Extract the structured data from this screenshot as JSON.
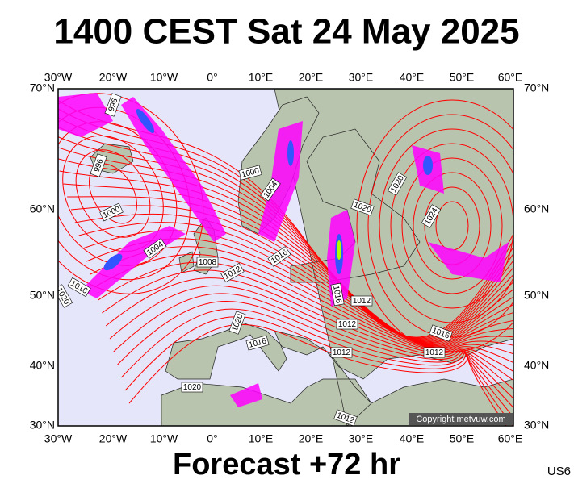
{
  "header": {
    "title": "1400 CEST Sat 24 May 2025"
  },
  "map": {
    "lon_labels": [
      "30°W",
      "20°W",
      "10°W",
      "0°",
      "10°E",
      "20°E",
      "30°E",
      "40°E",
      "50°E",
      "60°E"
    ],
    "lat_labels": [
      "70°N",
      "60°N",
      "50°N",
      "40°N",
      "30°N"
    ],
    "isobar_labels": [
      "996",
      "996",
      "1000",
      "1000",
      "1004",
      "1004",
      "1008",
      "1012",
      "1016",
      "1016",
      "1020",
      "1020",
      "1020",
      "1024",
      "1020",
      "1016",
      "1016",
      "1012",
      "1012",
      "1012",
      "1016",
      "1012",
      "1020",
      "1012"
    ],
    "copyright": "Copyright metvuw.com"
  },
  "footer": {
    "forecast": "Forecast +72 hr",
    "code": "US6"
  }
}
